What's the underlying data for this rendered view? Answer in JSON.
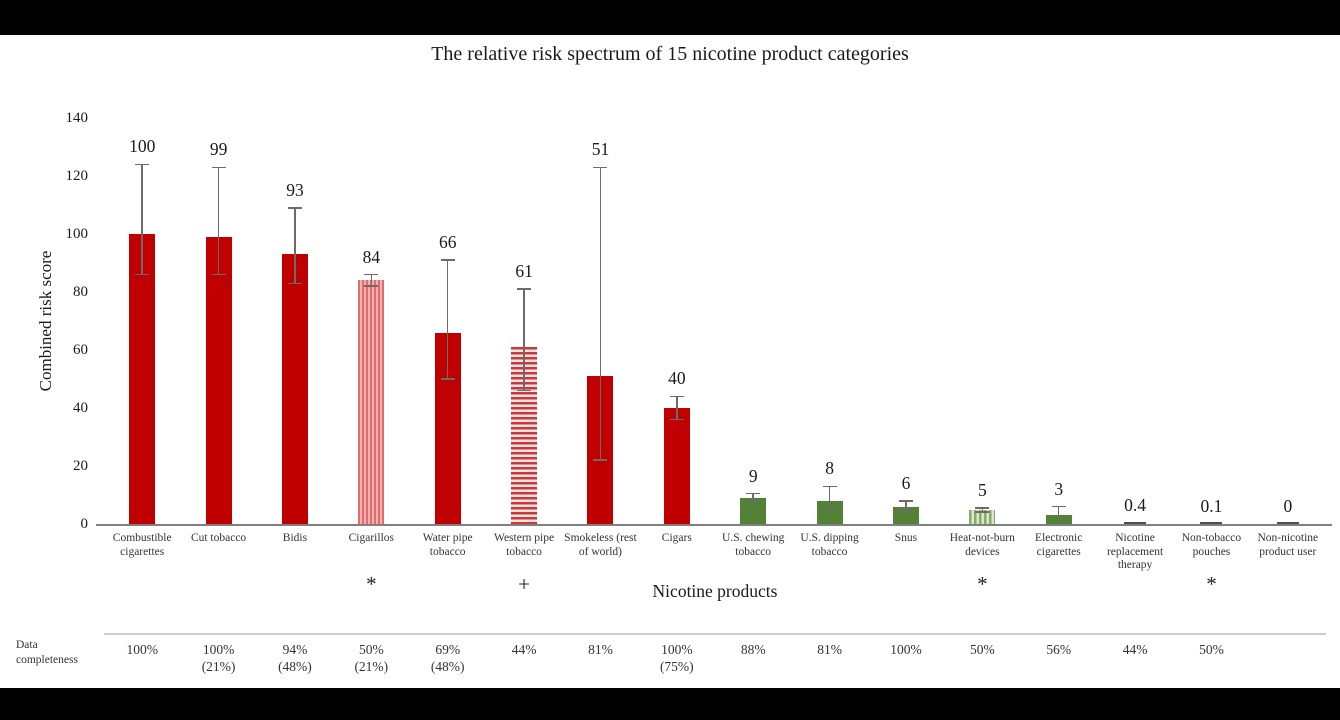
{
  "chart_data": {
    "type": "bar",
    "title": "The relative risk spectrum of 15 nicotine product categories",
    "xlabel": "Nicotine products",
    "ylabel": "Combined risk score",
    "ylim": [
      0,
      140
    ],
    "yticks": [
      0,
      20,
      40,
      60,
      80,
      100,
      120,
      140
    ],
    "grid": false,
    "legend": false,
    "categories": [
      "Combustible cigarettes",
      "Cut tobacco",
      "Bidis",
      "Cigarillos",
      "Water pipe tobacco",
      "Western pipe tobacco",
      "Smokeless (rest of world)",
      "Cigars",
      "U.S. chewing tobacco",
      "U.S. dipping tobacco",
      "Snus",
      "Heat-not-burn devices",
      "Electronic cigarettes",
      "Nicotine replacement therapy",
      "Non-tobacco pouches",
      "Non-nicotine product user"
    ],
    "values": [
      100,
      99,
      93,
      84,
      66,
      61,
      51,
      40,
      9,
      8,
      6,
      5,
      3,
      0.4,
      0.1,
      0
    ],
    "value_labels": [
      "100",
      "99",
      "93",
      "84",
      "66",
      "61",
      "51",
      "40",
      "9",
      "8",
      "6",
      "5",
      "3",
      "0.4",
      "0.1",
      "0"
    ],
    "error_low": [
      86,
      86,
      83,
      82,
      50,
      46,
      22,
      36,
      7,
      5,
      4.5,
      4.2,
      0.5,
      null,
      null,
      null
    ],
    "error_high": [
      124,
      123,
      109,
      86,
      91,
      81,
      123,
      44,
      10.5,
      13,
      8,
      5.5,
      6,
      null,
      null,
      null
    ],
    "bar_styles": [
      "solid-red",
      "solid-red",
      "solid-red",
      "striped-vertical-red",
      "solid-red",
      "striped-horizontal-red",
      "solid-red",
      "solid-red",
      "solid-green",
      "solid-green",
      "solid-green",
      "striped-vertical-green",
      "solid-green",
      "tiny",
      "tiny",
      "tiny"
    ],
    "significance_markers": [
      "",
      "",
      "",
      "*",
      "",
      "+",
      "",
      "",
      "",
      "",
      "",
      "*",
      "",
      "",
      "*",
      ""
    ],
    "completeness_row": {
      "label": "Data completeness",
      "values": [
        "100%",
        "100%\n(21%)",
        "94%\n(48%)",
        "50%\n(21%)",
        "69%\n(48%)",
        "44%",
        "81%",
        "100%\n(75%)",
        "88%",
        "81%",
        "100%",
        "50%",
        "56%",
        "44%",
        "50%",
        ""
      ]
    },
    "colors": {
      "solid_red": "#c00000",
      "pink_stripe_light": "#f2b0b0",
      "pink_stripe_dark": "#e06c6c",
      "hatch_red": "#c83a3a",
      "hatch_bg": "#f7e3e3",
      "solid_green": "#538135",
      "green_stripe_light": "#d9e8cd",
      "green_stripe_dark": "#85ad68",
      "tiny_bar": "#4d4d4d",
      "error_bar": "#6b6b6b",
      "axis_line": "#808080",
      "separator_line": "#cccccc",
      "text": "#1a1a1a",
      "background": "#ffffff",
      "letterbox": "#000000"
    }
  }
}
